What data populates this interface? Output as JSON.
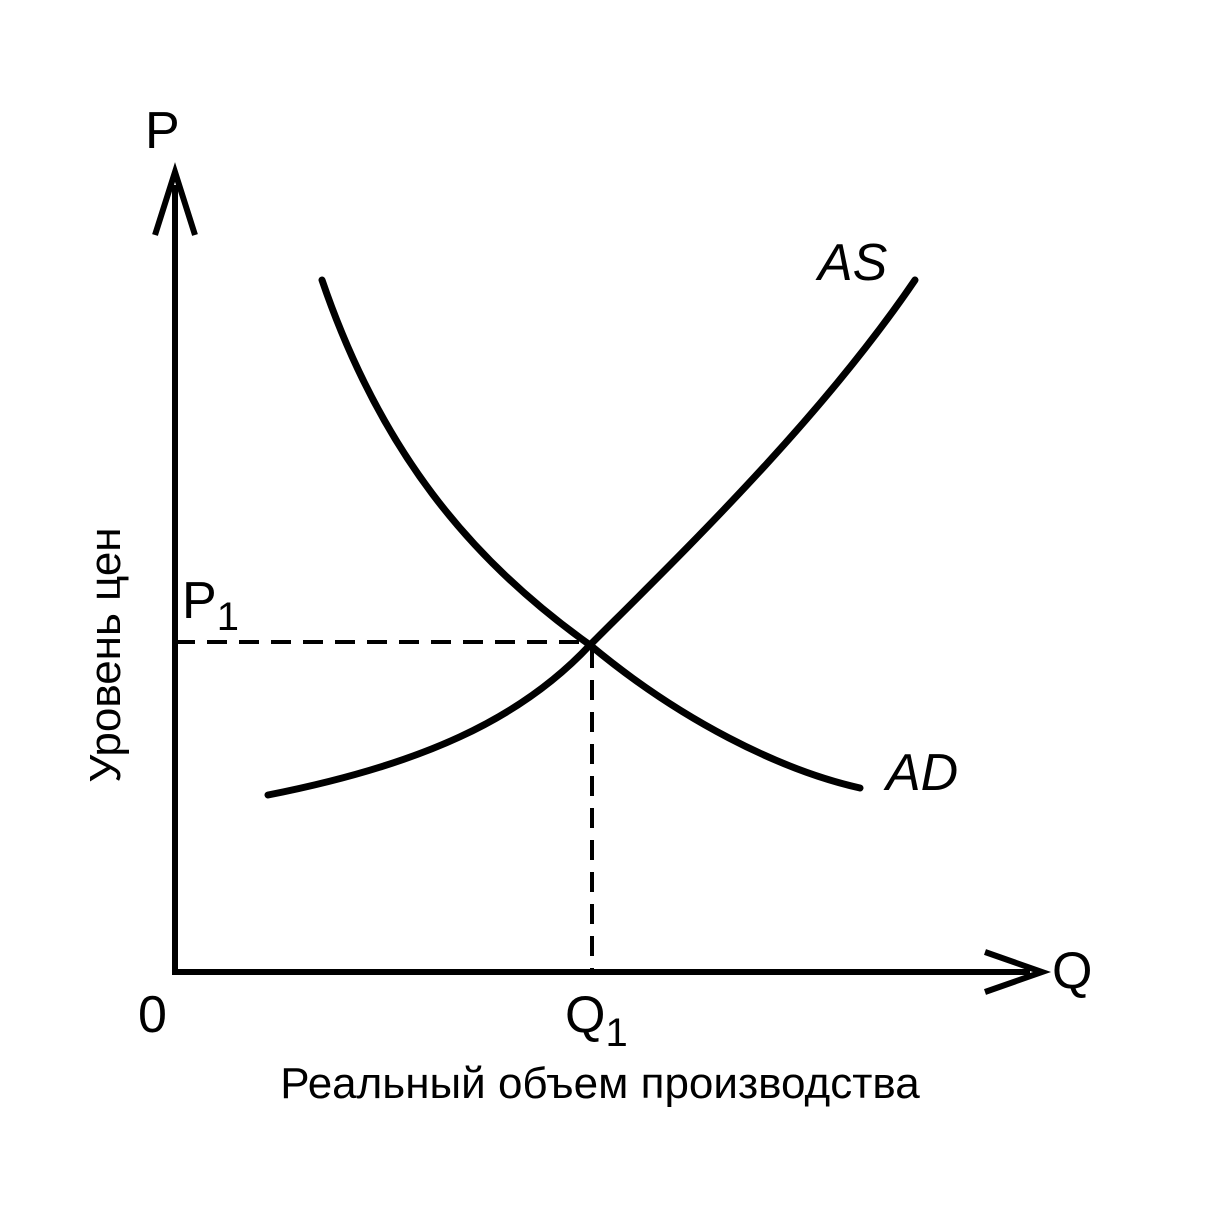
{
  "axes": {
    "y": {
      "label": "P",
      "title": "Уровень цен"
    },
    "x": {
      "label": "Q",
      "title": "Реальный объем производства"
    },
    "origin": "0"
  },
  "curves": [
    {
      "label": "AS"
    },
    {
      "label": "AD"
    }
  ],
  "equilibrium": {
    "price": {
      "label": "P",
      "subscript": "1"
    },
    "quantity": {
      "label": "Q",
      "subscript": "1"
    }
  }
}
